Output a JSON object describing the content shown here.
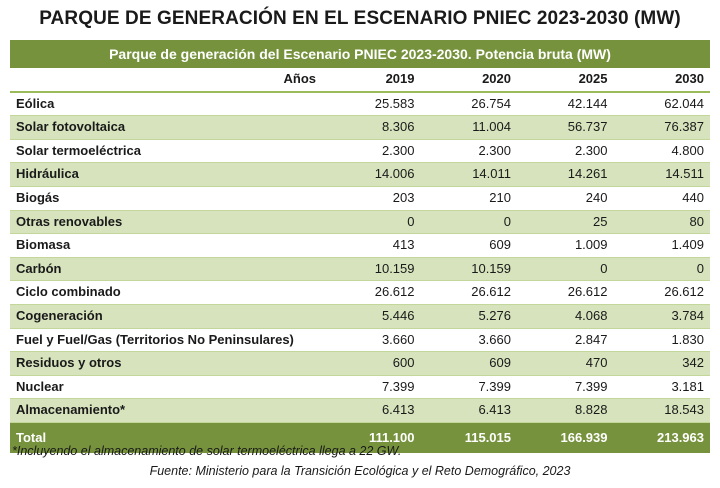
{
  "title": "PARQUE DE GENERACIÓN EN EL ESCENARIO PNIEC 2023-2030 (MW)",
  "subtitle": "Parque de generación del Escenario PNIEC 2023-2030. Potencia bruta (MW)",
  "colors": {
    "header_green": "#76923c",
    "row_alt": "#d6e3bc"
  },
  "table": {
    "headers": [
      "Años",
      "2019",
      "2020",
      "2025",
      "2030"
    ],
    "rows": [
      {
        "label": "Eólica",
        "values": [
          "25.583",
          "26.754",
          "42.144",
          "62.044"
        ]
      },
      {
        "label": "Solar fotovoltaica",
        "values": [
          "8.306",
          "11.004",
          "56.737",
          "76.387"
        ]
      },
      {
        "label": "Solar termoeléctrica",
        "values": [
          "2.300",
          "2.300",
          "2.300",
          "4.800"
        ]
      },
      {
        "label": "Hidráulica",
        "values": [
          "14.006",
          "14.011",
          "14.261",
          "14.511"
        ]
      },
      {
        "label": "Biogás",
        "values": [
          "203",
          "210",
          "240",
          "440"
        ]
      },
      {
        "label": "Otras renovables",
        "values": [
          "0",
          "0",
          "25",
          "80"
        ]
      },
      {
        "label": "Biomasa",
        "values": [
          "413",
          "609",
          "1.009",
          "1.409"
        ]
      },
      {
        "label": "Carbón",
        "values": [
          "10.159",
          "10.159",
          "0",
          "0"
        ]
      },
      {
        "label": "Ciclo combinado",
        "values": [
          "26.612",
          "26.612",
          "26.612",
          "26.612"
        ]
      },
      {
        "label": "Cogeneración",
        "values": [
          "5.446",
          "5.276",
          "4.068",
          "3.784"
        ]
      },
      {
        "label": "Fuel y Fuel/Gas (Territorios No Peninsulares)",
        "values": [
          "3.660",
          "3.660",
          "2.847",
          "1.830"
        ]
      },
      {
        "label": "Residuos y otros",
        "values": [
          "600",
          "609",
          "470",
          "342"
        ]
      },
      {
        "label": "Nuclear",
        "values": [
          "7.399",
          "7.399",
          "7.399",
          "3.181"
        ]
      },
      {
        "label": "Almacenamiento*",
        "values": [
          "6.413",
          "6.413",
          "8.828",
          "18.543"
        ]
      }
    ],
    "total": {
      "label": "Total",
      "values": [
        "111.100",
        "115.015",
        "166.939",
        "213.963"
      ]
    }
  },
  "note": "*Incluyendo el almacenamiento de solar termoeléctrica llega a 22 GW.",
  "source": "Fuente: Ministerio para la Transición Ecológica y el Reto Demográfico, 2023"
}
